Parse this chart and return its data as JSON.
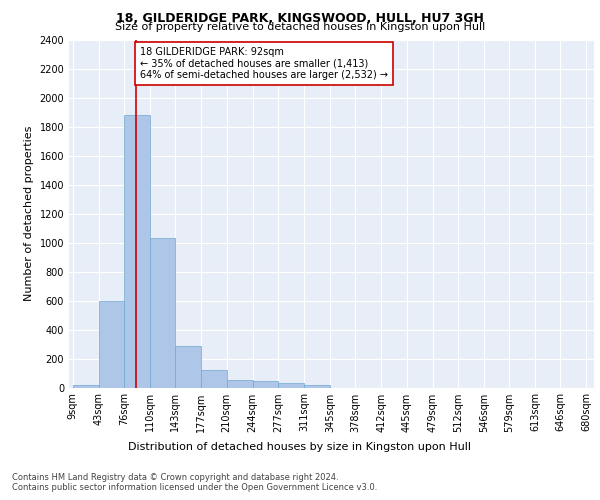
{
  "title1": "18, GILDERIDGE PARK, KINGSWOOD, HULL, HU7 3GH",
  "title2": "Size of property relative to detached houses in Kingston upon Hull",
  "xlabel": "Distribution of detached houses by size in Kingston upon Hull",
  "ylabel": "Number of detached properties",
  "footnote1": "Contains HM Land Registry data © Crown copyright and database right 2024.",
  "footnote2": "Contains public sector information licensed under the Open Government Licence v3.0.",
  "annotation_line1": "18 GILDERIDGE PARK: 92sqm",
  "annotation_line2": "← 35% of detached houses are smaller (1,413)",
  "annotation_line3": "64% of semi-detached houses are larger (2,532) →",
  "property_size": 92,
  "bar_edges": [
    9,
    43,
    76,
    110,
    143,
    177,
    210,
    244,
    277,
    311,
    345,
    378,
    412,
    445,
    479,
    512,
    546,
    579,
    613,
    646,
    680
  ],
  "bar_heights": [
    20,
    600,
    1880,
    1030,
    285,
    120,
    50,
    45,
    30,
    20,
    0,
    0,
    0,
    0,
    0,
    0,
    0,
    0,
    0,
    0
  ],
  "bar_color": "#aec6e8",
  "bar_edge_color": "#6fa8d0",
  "vline_color": "#cc0000",
  "vline_x": 92,
  "ylim": [
    0,
    2400
  ],
  "yticks": [
    0,
    200,
    400,
    600,
    800,
    1000,
    1200,
    1400,
    1600,
    1800,
    2000,
    2200,
    2400
  ],
  "bg_color": "#e8eef7",
  "annotation_box_color": "#cc0000",
  "title1_fontsize": 9,
  "title2_fontsize": 8,
  "xlabel_fontsize": 8,
  "ylabel_fontsize": 8,
  "tick_fontsize": 7,
  "annotation_fontsize": 7,
  "footnote_fontsize": 6
}
